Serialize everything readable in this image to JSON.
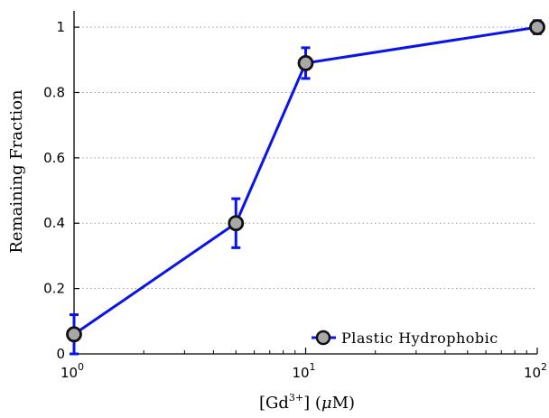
{
  "chart_data": {
    "type": "line",
    "xscale": "log",
    "xlim": [
      1,
      100
    ],
    "ylim": [
      0,
      1.05
    ],
    "x": [
      1,
      5,
      10,
      100
    ],
    "series": [
      {
        "name": "Plastic Hydrophobic",
        "values": [
          0.06,
          0.4,
          0.89,
          1.0
        ],
        "errors": [
          0.06,
          0.075,
          0.047,
          0.02
        ],
        "line_color": "#0a14e8",
        "marker_fill": "#a8a8a8",
        "marker_edge": "#111111"
      }
    ],
    "xticks": [
      {
        "value": 1,
        "base": "10",
        "exp": "0"
      },
      {
        "value": 10,
        "base": "10",
        "exp": "1"
      },
      {
        "value": 100,
        "base": "10",
        "exp": "2"
      }
    ],
    "yticks": [
      {
        "value": 0,
        "label": "0"
      },
      {
        "value": 0.2,
        "label": "0.2"
      },
      {
        "value": 0.4,
        "label": "0.4"
      },
      {
        "value": 0.6,
        "label": "0.6"
      },
      {
        "value": 0.8,
        "label": "0.8"
      },
      {
        "value": 1.0,
        "label": "1"
      }
    ],
    "xlabel": {
      "pre": "[Gd",
      "sup": "3+",
      "post": "] (",
      "mu": "μ",
      "unit": "M)"
    },
    "ylabel": "Remaining Fraction",
    "grid": "y-dotted",
    "legend_position": "bottom-right"
  }
}
